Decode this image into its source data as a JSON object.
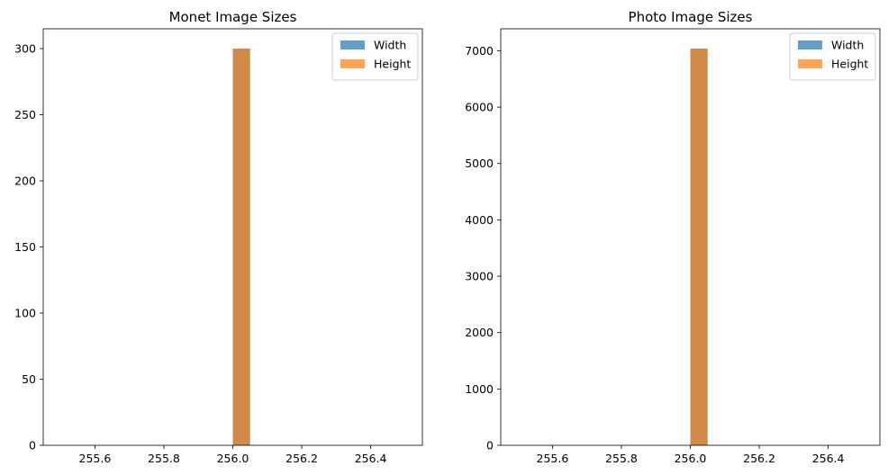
{
  "chart_data": [
    {
      "type": "bar",
      "title": "Monet Image Sizes",
      "xlabel": "",
      "ylabel": "",
      "xlim": [
        255.45,
        256.55
      ],
      "ylim": [
        0,
        315
      ],
      "x_ticks": [
        "255.6",
        "255.8",
        "256.0",
        "256.2",
        "256.4"
      ],
      "x_tick_values": [
        255.6,
        255.8,
        256.0,
        256.2,
        256.4
      ],
      "y_ticks": [
        "0",
        "50",
        "100",
        "150",
        "200",
        "250",
        "300"
      ],
      "y_tick_values": [
        0,
        50,
        100,
        150,
        200,
        250,
        300
      ],
      "legend_position": "upper right",
      "grid": false,
      "series": [
        {
          "name": "Width",
          "color": "#1f77b4",
          "alpha": 0.7,
          "bins": [
            {
              "x0": 256.0,
              "x1": 256.05,
              "count": 300
            }
          ]
        },
        {
          "name": "Height",
          "color": "#ff7f0e",
          "alpha": 0.7,
          "bins": [
            {
              "x0": 256.0,
              "x1": 256.05,
              "count": 300
            }
          ]
        }
      ]
    },
    {
      "type": "bar",
      "title": "Photo Image Sizes",
      "xlabel": "",
      "ylabel": "",
      "xlim": [
        255.45,
        256.55
      ],
      "ylim": [
        0,
        7390
      ],
      "x_ticks": [
        "255.6",
        "255.8",
        "256.0",
        "256.2",
        "256.4"
      ],
      "x_tick_values": [
        255.6,
        255.8,
        256.0,
        256.2,
        256.4
      ],
      "y_ticks": [
        "0",
        "1000",
        "2000",
        "3000",
        "4000",
        "5000",
        "6000",
        "7000"
      ],
      "y_tick_values": [
        0,
        1000,
        2000,
        3000,
        4000,
        5000,
        6000,
        7000
      ],
      "legend_position": "upper right",
      "grid": false,
      "series": [
        {
          "name": "Width",
          "color": "#1f77b4",
          "alpha": 0.7,
          "bins": [
            {
              "x0": 256.0,
              "x1": 256.05,
              "count": 7038
            }
          ]
        },
        {
          "name": "Height",
          "color": "#ff7f0e",
          "alpha": 0.7,
          "bins": [
            {
              "x0": 256.0,
              "x1": 256.05,
              "count": 7038
            }
          ]
        }
      ]
    }
  ]
}
